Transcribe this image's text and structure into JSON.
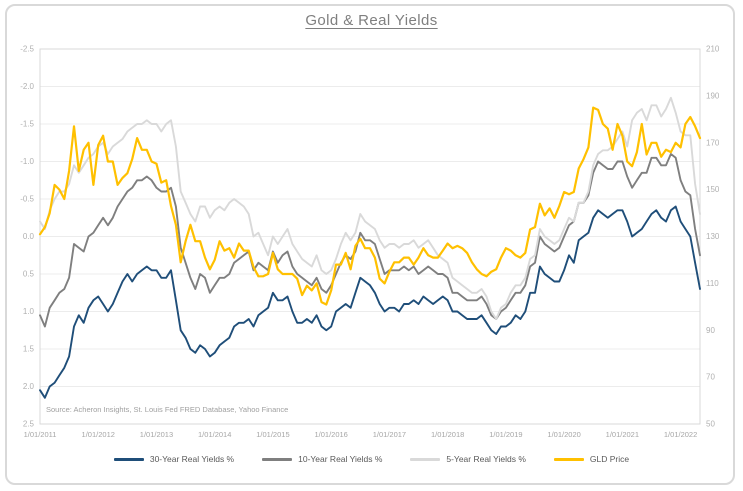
{
  "window": {
    "background": "#ffffff",
    "card_border_color": "#d9d9d9"
  },
  "chart_data": {
    "type": "line",
    "title": "Gold & Real Yields",
    "source_note": "Source: Acheron Insights, St. Louis Fed FRED Database, Yahoo Finance",
    "legend_position": "bottom",
    "grid": "horizontal",
    "x_count": 137,
    "x_tick_labels": [
      "1/01/2011",
      "1/01/2012",
      "1/01/2013",
      "1/01/2014",
      "1/01/2015",
      "1/01/2016",
      "1/01/2017",
      "1/01/2018",
      "1/01/2019",
      "1/01/2020",
      "1/01/2021",
      "1/01/2022"
    ],
    "x_tick_indices": [
      0,
      12,
      24,
      36,
      48,
      60,
      72,
      84,
      96,
      108,
      120,
      132
    ],
    "left_axis": {
      "inverted": true,
      "top_value": -2.5,
      "bottom_value": 2.5,
      "tick_labels": [
        "-2.5",
        "-2.0",
        "-1.5",
        "-1.0",
        "-0.5",
        "0.0",
        "0.5",
        "1.0",
        "1.5",
        "2.0",
        "2.5"
      ]
    },
    "right_axis": {
      "top_value": 210,
      "bottom_value": 50,
      "tick_labels": [
        "210",
        "190",
        "170",
        "150",
        "130",
        "110",
        "90",
        "70",
        "50"
      ]
    },
    "series": [
      {
        "name": "30-Year Real Yields %",
        "axis": "left",
        "color": "#1f4e79",
        "values": [
          2.05,
          2.15,
          2.0,
          1.95,
          1.85,
          1.75,
          1.6,
          1.2,
          1.05,
          1.15,
          0.95,
          0.85,
          0.8,
          0.9,
          1.0,
          0.9,
          0.75,
          0.6,
          0.5,
          0.6,
          0.5,
          0.45,
          0.4,
          0.45,
          0.45,
          0.55,
          0.55,
          0.45,
          0.85,
          1.25,
          1.35,
          1.5,
          1.55,
          1.45,
          1.5,
          1.6,
          1.55,
          1.45,
          1.4,
          1.35,
          1.2,
          1.15,
          1.15,
          1.1,
          1.2,
          1.05,
          1.0,
          0.95,
          0.75,
          0.85,
          0.85,
          0.8,
          1.0,
          1.15,
          1.15,
          1.1,
          1.15,
          1.05,
          1.2,
          1.25,
          1.2,
          1.0,
          0.95,
          0.9,
          0.95,
          0.75,
          0.55,
          0.6,
          0.65,
          0.75,
          0.9,
          1.0,
          0.95,
          0.95,
          1.0,
          0.9,
          0.9,
          0.85,
          0.9,
          0.8,
          0.85,
          0.9,
          0.85,
          0.8,
          0.85,
          1.0,
          1.0,
          1.05,
          1.1,
          1.1,
          1.1,
          1.05,
          1.15,
          1.25,
          1.3,
          1.2,
          1.2,
          1.15,
          1.05,
          1.1,
          1.0,
          0.75,
          0.75,
          0.4,
          0.5,
          0.55,
          0.6,
          0.6,
          0.45,
          0.25,
          0.35,
          0.05,
          0.0,
          -0.05,
          -0.25,
          -0.35,
          -0.3,
          -0.25,
          -0.3,
          -0.35,
          -0.35,
          -0.2,
          0.0,
          -0.05,
          -0.1,
          -0.2,
          -0.3,
          -0.35,
          -0.25,
          -0.2,
          -0.35,
          -0.4,
          -0.2,
          -0.1,
          0.0,
          0.35,
          0.7
        ]
      },
      {
        "name": "10-Year Real Yields %",
        "axis": "left",
        "color": "#7f7f7f",
        "values": [
          1.05,
          1.2,
          0.95,
          0.85,
          0.75,
          0.7,
          0.55,
          0.1,
          0.15,
          0.2,
          0.0,
          -0.05,
          -0.15,
          -0.25,
          -0.15,
          -0.25,
          -0.4,
          -0.5,
          -0.6,
          -0.65,
          -0.75,
          -0.75,
          -0.8,
          -0.75,
          -0.65,
          -0.6,
          -0.6,
          -0.65,
          -0.4,
          0.15,
          0.35,
          0.55,
          0.7,
          0.5,
          0.55,
          0.75,
          0.65,
          0.55,
          0.55,
          0.5,
          0.35,
          0.3,
          0.25,
          0.2,
          0.45,
          0.35,
          0.4,
          0.45,
          0.2,
          0.35,
          0.25,
          0.2,
          0.4,
          0.5,
          0.55,
          0.6,
          0.65,
          0.55,
          0.7,
          0.75,
          0.65,
          0.5,
          0.35,
          0.25,
          0.3,
          0.2,
          -0.05,
          0.05,
          0.05,
          0.1,
          0.3,
          0.5,
          0.45,
          0.45,
          0.45,
          0.4,
          0.45,
          0.4,
          0.5,
          0.45,
          0.4,
          0.45,
          0.5,
          0.5,
          0.55,
          0.75,
          0.75,
          0.8,
          0.85,
          0.85,
          0.85,
          0.8,
          0.9,
          1.05,
          1.1,
          1.0,
          0.95,
          0.85,
          0.75,
          0.75,
          0.65,
          0.4,
          0.35,
          0.0,
          0.1,
          0.15,
          0.2,
          0.15,
          0.0,
          -0.15,
          -0.2,
          -0.45,
          -0.45,
          -0.55,
          -0.85,
          -1.0,
          -0.95,
          -0.9,
          -0.9,
          -1.0,
          -1.0,
          -0.8,
          -0.65,
          -0.75,
          -0.85,
          -0.85,
          -1.05,
          -1.05,
          -0.95,
          -0.95,
          -1.1,
          -1.05,
          -0.75,
          -0.6,
          -0.55,
          -0.1,
          0.25
        ]
      },
      {
        "name": "5-Year Real Yields %",
        "axis": "left",
        "color": "#d9d9d9",
        "values": [
          -0.2,
          -0.1,
          -0.35,
          -0.5,
          -0.6,
          -0.6,
          -0.7,
          -0.95,
          -0.85,
          -0.95,
          -1.05,
          -1.1,
          -1.2,
          -1.25,
          -1.1,
          -1.2,
          -1.25,
          -1.3,
          -1.4,
          -1.45,
          -1.5,
          -1.5,
          -1.55,
          -1.5,
          -1.5,
          -1.4,
          -1.5,
          -1.55,
          -1.2,
          -0.6,
          -0.45,
          -0.3,
          -0.2,
          -0.4,
          -0.4,
          -0.25,
          -0.35,
          -0.4,
          -0.35,
          -0.45,
          -0.5,
          -0.45,
          -0.4,
          -0.3,
          0.0,
          -0.05,
          0.1,
          0.25,
          0.0,
          0.1,
          0.0,
          -0.1,
          0.1,
          0.2,
          0.3,
          0.35,
          0.4,
          0.25,
          0.45,
          0.5,
          0.45,
          0.3,
          0.1,
          -0.05,
          0.05,
          -0.05,
          -0.3,
          -0.2,
          -0.15,
          -0.1,
          0.05,
          0.15,
          0.1,
          0.1,
          0.15,
          0.1,
          0.1,
          0.05,
          0.15,
          0.1,
          0.05,
          0.15,
          0.25,
          0.3,
          0.35,
          0.55,
          0.6,
          0.65,
          0.7,
          0.75,
          0.75,
          0.7,
          0.8,
          1.0,
          1.1,
          0.95,
          0.9,
          0.75,
          0.65,
          0.65,
          0.55,
          0.3,
          0.25,
          -0.1,
          0.0,
          0.05,
          0.1,
          0.05,
          -0.1,
          -0.25,
          -0.2,
          -0.45,
          -0.45,
          -0.6,
          -0.95,
          -1.1,
          -1.15,
          -1.15,
          -1.2,
          -1.3,
          -1.4,
          -1.2,
          -1.55,
          -1.65,
          -1.7,
          -1.55,
          -1.75,
          -1.75,
          -1.6,
          -1.7,
          -1.85,
          -1.65,
          -1.4,
          -1.35,
          -1.35,
          -0.7,
          -0.3
        ]
      },
      {
        "name": "GLD Price",
        "axis": "right",
        "color": "#ffc000",
        "values": [
          131,
          134,
          140,
          152,
          150,
          146,
          158,
          177,
          158,
          167,
          170,
          152,
          169,
          173,
          162,
          162,
          152,
          155,
          157,
          163,
          172,
          167,
          167,
          162,
          161,
          153,
          154,
          143,
          135,
          119,
          128,
          135,
          128,
          128,
          121,
          116,
          120,
          128,
          124,
          125,
          121,
          127,
          124,
          124,
          117,
          113,
          113,
          114,
          123,
          116,
          114,
          114,
          114,
          112,
          105,
          109,
          107,
          110,
          102,
          101,
          107,
          118,
          118,
          123,
          116,
          126,
          129,
          125,
          125,
          121,
          112,
          110,
          115,
          119,
          119,
          121,
          121,
          118,
          121,
          125,
          122,
          121,
          121,
          124,
          127,
          125,
          126,
          125,
          123,
          119,
          116,
          114,
          113,
          115,
          116,
          121,
          125,
          124,
          122,
          121,
          123,
          133,
          134,
          144,
          139,
          142,
          138,
          143,
          149,
          148,
          149,
          159,
          163,
          168,
          185,
          184,
          178,
          176,
          167,
          178,
          173,
          162,
          160,
          166,
          178,
          165,
          170,
          170,
          164,
          167,
          166,
          170,
          168,
          178,
          181,
          177,
          172
        ]
      }
    ]
  }
}
